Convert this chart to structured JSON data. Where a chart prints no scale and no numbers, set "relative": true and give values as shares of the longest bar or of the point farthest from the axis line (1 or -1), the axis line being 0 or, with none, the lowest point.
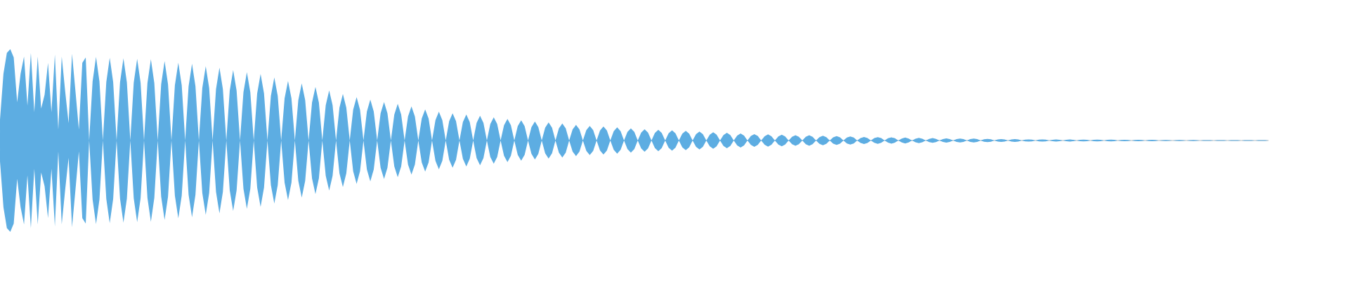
{
  "chart_data": {
    "type": "area",
    "relative": true,
    "categories": [
      null,
      null,
      null,
      null,
      null,
      null,
      null,
      null,
      null,
      null,
      null,
      null,
      null,
      null,
      null,
      null,
      null,
      null,
      null,
      null,
      null,
      null,
      null,
      null,
      null,
      null,
      null,
      null,
      null,
      null,
      null,
      null,
      null,
      null,
      null,
      null,
      null,
      null,
      null,
      null,
      null,
      null,
      null,
      null,
      null,
      null,
      null,
      null,
      null,
      null,
      null,
      null,
      null,
      null,
      null,
      null,
      null,
      null,
      null,
      null,
      null,
      null,
      null,
      null,
      null,
      null,
      null,
      null,
      null,
      null,
      null,
      null,
      null,
      null,
      null,
      null,
      null,
      null,
      null,
      null,
      null,
      null,
      null,
      null,
      null,
      null,
      null,
      null,
      null,
      null,
      null,
      null,
      null,
      null,
      null,
      null,
      null,
      null,
      null,
      null,
      null,
      null,
      null,
      null,
      null,
      null,
      null,
      null,
      null,
      null,
      null,
      null,
      null,
      null,
      null,
      null,
      null,
      null,
      null,
      null,
      null,
      null,
      null,
      null,
      null,
      null,
      null,
      null,
      null,
      null,
      null,
      null,
      null,
      null,
      null,
      null,
      null,
      null,
      null,
      null,
      null,
      null,
      null,
      null,
      null,
      null,
      null,
      null,
      null,
      null,
      null,
      null,
      null,
      null,
      null,
      null,
      null,
      null,
      null,
      null,
      null,
      null,
      null,
      null,
      null,
      null,
      null,
      null,
      null,
      null,
      null,
      null,
      null,
      null,
      null,
      null,
      null,
      null,
      null,
      null,
      null,
      null,
      null,
      null,
      null,
      null,
      null,
      null,
      null,
      null,
      null,
      null,
      null,
      null,
      null,
      null,
      null,
      null,
      null,
      null,
      null,
      null,
      null,
      null,
      null,
      null,
      null,
      null,
      null,
      null,
      null,
      null,
      null,
      null,
      null,
      null,
      null,
      null,
      null,
      null,
      null,
      null,
      null,
      null,
      null,
      null,
      null,
      null,
      null,
      null,
      null,
      null,
      null,
      null,
      null,
      null,
      null,
      null,
      null,
      null,
      null,
      null,
      null,
      null,
      null,
      null,
      null,
      null,
      null,
      null,
      null,
      null,
      null,
      null,
      null,
      null,
      null,
      null,
      null,
      null,
      null,
      null,
      null,
      null,
      null,
      null,
      null,
      null,
      null,
      null,
      null,
      null,
      null,
      null,
      null,
      null,
      null,
      null,
      null,
      null,
      null,
      null,
      null,
      null,
      null,
      null,
      null,
      null,
      null,
      null,
      null,
      null,
      null,
      null,
      null,
      null,
      null,
      null,
      null,
      null,
      null,
      null,
      null,
      null,
      null,
      null,
      null,
      null,
      null,
      null,
      null,
      null,
      null,
      null,
      null,
      null,
      null,
      null,
      null,
      null,
      null,
      null,
      null,
      null,
      null,
      null,
      null,
      null,
      null,
      null,
      null,
      null,
      null,
      null,
      null,
      null,
      null,
      null,
      null,
      null,
      null,
      null,
      null,
      null,
      null,
      null,
      null,
      null,
      null,
      null,
      null,
      null,
      null,
      null,
      null,
      null,
      null,
      null,
      null,
      null,
      null,
      null,
      null,
      null,
      null,
      null,
      null,
      null,
      null,
      null,
      null
    ],
    "series": [
      {
        "color": "#5dade2",
        "values": [
          0.23,
          0.73,
          0.96,
          1,
          0.91,
          0.42,
          0.73,
          0.92,
          0.38,
          0.96,
          0.31,
          0.92,
          0.35,
          0.5,
          0.85,
          0.31,
          0.94,
          0.12,
          0.92,
          0.54,
          0.19,
          0.95,
          0.54,
          0.12,
          0.85,
          0.91,
          0,
          0.647,
          0.915,
          0.647,
          0,
          0.64,
          0.905,
          0.64,
          0,
          0.636,
          0.9,
          0.636,
          0,
          0.633,
          0.895,
          0.633,
          0,
          0.629,
          0.89,
          0.629,
          0,
          0.615,
          0.869,
          0.615,
          0,
          0.603,
          0.852,
          0.603,
          0,
          0.594,
          0.84,
          0.594,
          0,
          0.575,
          0.814,
          0.575,
          0,
          0.564,
          0.798,
          0.564,
          0,
          0.546,
          0.772,
          0.546,
          0,
          0.529,
          0.748,
          0.529,
          0,
          0.515,
          0.728,
          0.515,
          0,
          0.488,
          0.69,
          0.488,
          0,
          0.461,
          0.652,
          0.461,
          0,
          0.442,
          0.625,
          0.442,
          0,
          0.415,
          0.587,
          0.415,
          0,
          0.387,
          0.548,
          0.387,
          0,
          0.36,
          0.509,
          0.36,
          0,
          0.336,
          0.475,
          0.336,
          0,
          0.317,
          0.448,
          0.317,
          0,
          0.298,
          0.421,
          0.298,
          0,
          0.284,
          0.402,
          0.284,
          0,
          0.264,
          0.373,
          0.264,
          0,
          0.24,
          0.34,
          0.24,
          0,
          0.223,
          0.315,
          0.223,
          0,
          0.211,
          0.298,
          0.211,
          0,
          0.201,
          0.285,
          0.201,
          0,
          0.192,
          0.272,
          0.192,
          0,
          0.18,
          0.254,
          0.18,
          0,
          0.168,
          0.237,
          0.168,
          0,
          0.157,
          0.222,
          0.157,
          0,
          0.147,
          0.208,
          0.147,
          0,
          0.14,
          0.198,
          0.14,
          0,
          0.132,
          0.186,
          0.132,
          0,
          0.121,
          0.172,
          0.121,
          0,
          0.113,
          0.16,
          0.113,
          0,
          0.109,
          0.154,
          0.109,
          0,
          0.102,
          0.144,
          0.102,
          0,
          0.094,
          0.133,
          0.094,
          0,
          0.087,
          0.123,
          0.087,
          0,
          0.083,
          0.118,
          0.083,
          0,
          0.079,
          0.112,
          0.079,
          0,
          0.075,
          0.105,
          0.075,
          0,
          0.069,
          0.098,
          0.069,
          0,
          0.064,
          0.091,
          0.064,
          0,
          0.06,
          0.085,
          0.06,
          0,
          0.054,
          0.077,
          0.054,
          0,
          0.049,
          0.069,
          0.049,
          0,
          0.047,
          0.067,
          0.047,
          0,
          0.045,
          0.064,
          0.045,
          0,
          0.041,
          0.058,
          0.041,
          0,
          0.041,
          0.058,
          0.041,
          0,
          0.037,
          0.052,
          0.037,
          0,
          0.034,
          0.048,
          0.034,
          0,
          0.032,
          0.045,
          0.032,
          0,
          0.027,
          0.038,
          0.027,
          0,
          0.026,
          0.036,
          0.026,
          0,
          0.024,
          0.035,
          0.024,
          0,
          0.022,
          0.032,
          0.022,
          0,
          0.02,
          0.029,
          0.02,
          0,
          0.018,
          0.026,
          0.018,
          0,
          0.016,
          0.023,
          0.016,
          0,
          0.015,
          0.021,
          0.015,
          0,
          0.015,
          0.021,
          0.015,
          0,
          0.013,
          0.018,
          0.013,
          0,
          0.011,
          0.016,
          0.011,
          0,
          0.011,
          0.016,
          0.011,
          0,
          0.009,
          0.012,
          0.009,
          0,
          0.009,
          0.012,
          0.009,
          0,
          0.008,
          0.011,
          0.008,
          0,
          0.008,
          0.011,
          0.008,
          0,
          0.007,
          0.01,
          0.007,
          0,
          0.007,
          0.01,
          0.007,
          0,
          0.007,
          0.01,
          0.007,
          0,
          0.005,
          0.007,
          0.005,
          0,
          0.005,
          0.007,
          0.005,
          0,
          0.005,
          0.007,
          0.005,
          0,
          0.004,
          0.006,
          0.004,
          0,
          0.004,
          0.006,
          0.004,
          0,
          0.004,
          0.006,
          0.004,
          0,
          0.003,
          0.004,
          0.003,
          0,
          0.003,
          0.004,
          0.003,
          0,
          0.003,
          0.004,
          0.003,
          0,
          0.003,
          0.004,
          0.003,
          0,
          0.003,
          0.004,
          0.003,
          0
        ]
      },
      {
        "color": "#5dade2",
        "values": [
          -0.23,
          -0.73,
          -0.96,
          -1,
          -0.91,
          -0.42,
          -0.73,
          -0.92,
          -0.38,
          -0.96,
          -0.31,
          -0.92,
          -0.35,
          -0.5,
          -0.85,
          -0.31,
          -0.94,
          -0.12,
          -0.92,
          -0.54,
          -0.19,
          -0.95,
          -0.54,
          -0.12,
          -0.85,
          -0.91,
          0,
          -0.647,
          -0.915,
          -0.647,
          0,
          -0.64,
          -0.905,
          -0.64,
          0,
          -0.636,
          -0.9,
          -0.636,
          0,
          -0.633,
          -0.895,
          -0.633,
          0,
          -0.629,
          -0.89,
          -0.629,
          0,
          -0.615,
          -0.869,
          -0.615,
          0,
          -0.603,
          -0.852,
          -0.603,
          0,
          -0.594,
          -0.84,
          -0.594,
          0,
          -0.575,
          -0.814,
          -0.575,
          0,
          -0.564,
          -0.798,
          -0.564,
          0,
          -0.546,
          -0.772,
          -0.546,
          0,
          -0.529,
          -0.748,
          -0.529,
          0,
          -0.515,
          -0.728,
          -0.515,
          0,
          -0.488,
          -0.69,
          -0.488,
          0,
          -0.461,
          -0.652,
          -0.461,
          0,
          -0.442,
          -0.625,
          -0.442,
          0,
          -0.415,
          -0.587,
          -0.415,
          0,
          -0.387,
          -0.548,
          -0.387,
          0,
          -0.36,
          -0.509,
          -0.36,
          0,
          -0.336,
          -0.475,
          -0.336,
          0,
          -0.317,
          -0.448,
          -0.317,
          0,
          -0.298,
          -0.421,
          -0.298,
          0,
          -0.284,
          -0.402,
          -0.284,
          0,
          -0.264,
          -0.373,
          -0.264,
          0,
          -0.24,
          -0.34,
          -0.24,
          0,
          -0.223,
          -0.315,
          -0.223,
          0,
          -0.211,
          -0.298,
          -0.211,
          0,
          -0.201,
          -0.285,
          -0.201,
          0,
          -0.192,
          -0.272,
          -0.192,
          0,
          -0.18,
          -0.254,
          -0.18,
          0,
          -0.168,
          -0.237,
          -0.168,
          0,
          -0.157,
          -0.222,
          -0.157,
          0,
          -0.147,
          -0.208,
          -0.147,
          0,
          -0.14,
          -0.198,
          -0.14,
          0,
          -0.132,
          -0.186,
          -0.132,
          0,
          -0.121,
          -0.172,
          -0.121,
          0,
          -0.113,
          -0.16,
          -0.113,
          0,
          -0.109,
          -0.154,
          -0.109,
          0,
          -0.102,
          -0.144,
          -0.102,
          0,
          -0.094,
          -0.133,
          -0.094,
          0,
          -0.087,
          -0.123,
          -0.087,
          0,
          -0.083,
          -0.118,
          -0.083,
          0,
          -0.079,
          -0.112,
          -0.079,
          0,
          -0.075,
          -0.105,
          -0.075,
          0,
          -0.069,
          -0.098,
          -0.069,
          0,
          -0.064,
          -0.091,
          -0.064,
          0,
          -0.06,
          -0.085,
          -0.06,
          0,
          -0.054,
          -0.077,
          -0.054,
          0,
          -0.049,
          -0.069,
          -0.049,
          0,
          -0.047,
          -0.067,
          -0.047,
          0,
          -0.045,
          -0.064,
          -0.045,
          0,
          -0.041,
          -0.058,
          -0.041,
          0,
          -0.041,
          -0.058,
          -0.041,
          0,
          -0.037,
          -0.052,
          -0.037,
          0,
          -0.034,
          -0.048,
          -0.034,
          0,
          -0.032,
          -0.045,
          -0.032,
          0,
          -0.027,
          -0.038,
          -0.027,
          0,
          -0.026,
          -0.036,
          -0.026,
          0,
          -0.024,
          -0.035,
          -0.024,
          0,
          -0.022,
          -0.032,
          -0.022,
          0,
          -0.02,
          -0.029,
          -0.02,
          0,
          -0.018,
          -0.026,
          -0.018,
          0,
          -0.016,
          -0.023,
          -0.016,
          0,
          -0.015,
          -0.021,
          -0.015,
          0,
          -0.015,
          -0.021,
          -0.015,
          0,
          -0.013,
          -0.018,
          -0.013,
          0,
          -0.011,
          -0.016,
          -0.011,
          0,
          -0.011,
          -0.016,
          -0.011,
          0,
          -0.009,
          -0.012,
          -0.009,
          0,
          -0.009,
          -0.012,
          -0.009,
          0,
          -0.008,
          -0.011,
          -0.008,
          0,
          -0.008,
          -0.011,
          -0.008,
          0,
          -0.007,
          -0.01,
          -0.007,
          0,
          -0.007,
          -0.01,
          -0.007,
          0,
          -0.007,
          -0.01,
          -0.007,
          0,
          -0.005,
          -0.007,
          -0.005,
          0,
          -0.005,
          -0.007,
          -0.005,
          0,
          -0.005,
          -0.007,
          -0.005,
          0,
          -0.004,
          -0.006,
          -0.004,
          0,
          -0.004,
          -0.006,
          -0.004,
          0,
          -0.004,
          -0.006,
          -0.004,
          0,
          -0.003,
          -0.004,
          -0.003,
          0,
          -0.003,
          -0.004,
          -0.003,
          0,
          -0.003,
          -0.004,
          -0.003,
          0,
          -0.003,
          -0.004,
          -0.003,
          0,
          -0.003,
          -0.004,
          -0.003,
          0
        ]
      }
    ]
  }
}
